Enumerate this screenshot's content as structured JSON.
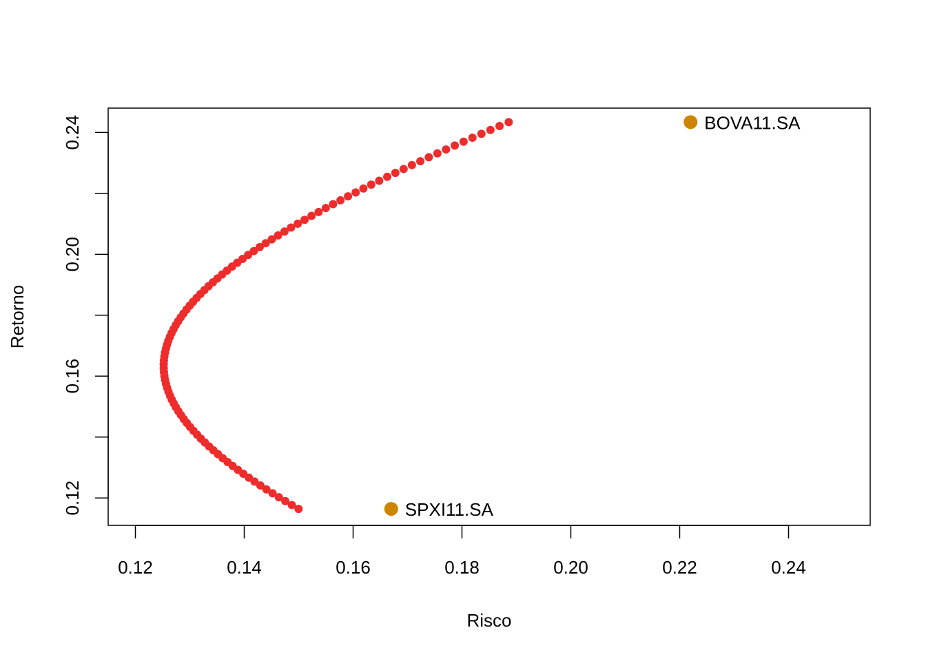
{
  "chart_data": {
    "type": "scatter",
    "title": "",
    "xlabel": "Risco",
    "ylabel": "Retorno",
    "xlim": [
      0.115,
      0.255
    ],
    "ylim": [
      0.111,
      0.248
    ],
    "xticks": [
      "0.12",
      "0.14",
      "0.16",
      "0.18",
      "0.20",
      "0.22",
      "0.24"
    ],
    "yticks_labeled": [
      "0.12",
      "0.16",
      "0.20",
      "0.24"
    ],
    "yticks_all": [
      0.12,
      0.14,
      0.16,
      0.18,
      0.2,
      0.22,
      0.24
    ],
    "grid": false,
    "frontier": {
      "color": "#ee2c2c",
      "mu_min": 0.1164,
      "mu_max": 0.2434,
      "n_points": 100,
      "min_variance": {
        "x": 0.1252,
        "y": 0.1633
      },
      "curvature": 3.1
    },
    "assets": {
      "color": "#cd8500",
      "points": [
        {
          "label": "BOVA11.SA",
          "x": 0.222,
          "y": 0.2434
        },
        {
          "label": "SPXI11.SA",
          "x": 0.167,
          "y": 0.1164
        }
      ]
    }
  }
}
